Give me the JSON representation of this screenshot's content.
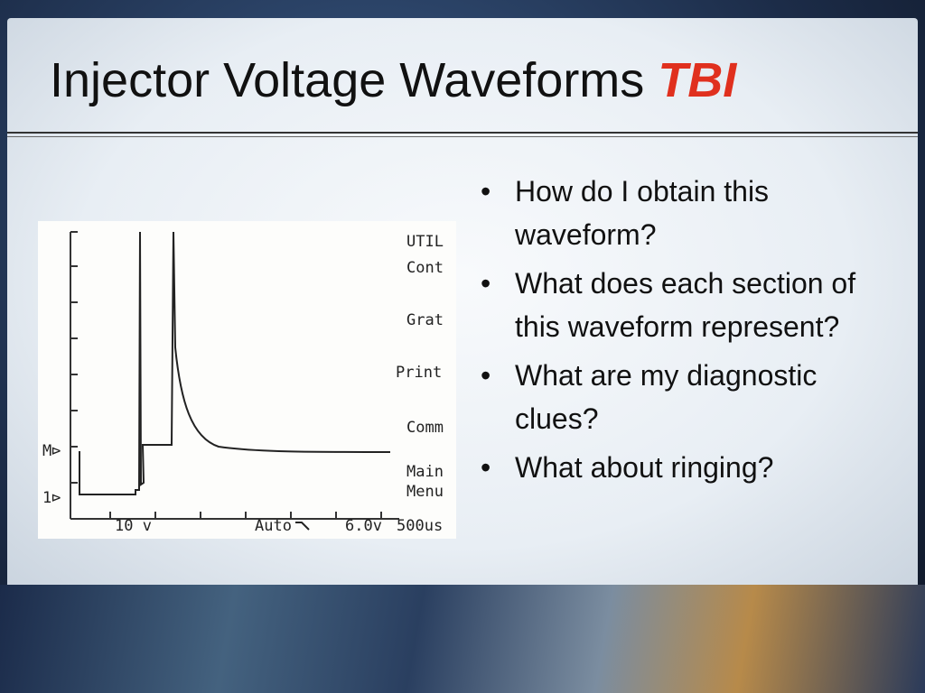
{
  "title": {
    "text": "Injector Voltage Waveforms",
    "emphasis": "TBI"
  },
  "bullets": [
    "How do I obtain this waveform?",
    "What does each section of this waveform represent?",
    "What are my diagnostic clues?",
    "What about ringing?"
  ],
  "scope": {
    "menu": [
      "UTIL",
      "Cont",
      "Grat",
      "Print",
      "Comm",
      "Main",
      "Menu"
    ],
    "markers": [
      "M⊳",
      "1⊳"
    ],
    "status": [
      "10 v",
      "Auto",
      "6.0v",
      "500us"
    ]
  }
}
